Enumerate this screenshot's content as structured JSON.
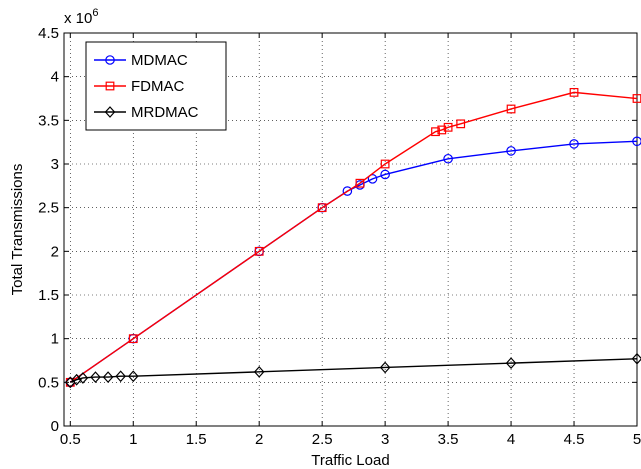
{
  "chart_data": {
    "type": "line",
    "xlabel": "Traffic Load",
    "ylabel": "Total Transmissions",
    "y_multiplier_label": "x 10",
    "y_multiplier_exponent": "6",
    "xlim": [
      0.45,
      5
    ],
    "ylim": [
      0,
      4.5
    ],
    "x_ticks": [
      0.5,
      1,
      1.5,
      2,
      2.5,
      3,
      3.5,
      4,
      4.5,
      5
    ],
    "x_tick_labels": [
      "0.5",
      "1",
      "1.5",
      "2",
      "2.5",
      "3",
      "3.5",
      "4",
      "4.5",
      "5"
    ],
    "y_ticks": [
      0,
      0.5,
      1,
      1.5,
      2,
      2.5,
      3,
      3.5,
      4,
      4.5
    ],
    "y_tick_labels": [
      "0",
      "0.5",
      "1",
      "1.5",
      "2",
      "2.5",
      "3",
      "3.5",
      "4",
      "4.5"
    ],
    "grid": true,
    "legend_position": "top-left",
    "series": [
      {
        "name": "MDMAC",
        "color": "#0000ff",
        "marker": "circle",
        "points": [
          [
            0.5,
            0.5
          ],
          [
            1,
            1.0
          ],
          [
            2,
            2.0
          ],
          [
            2.5,
            2.5
          ],
          [
            2.7,
            2.69
          ],
          [
            2.8,
            2.76
          ],
          [
            2.9,
            2.83
          ],
          [
            3,
            2.88
          ],
          [
            3.5,
            3.06
          ],
          [
            4,
            3.15
          ],
          [
            4.5,
            3.23
          ],
          [
            5,
            3.26
          ]
        ]
      },
      {
        "name": "FDMAC",
        "color": "#ff0000",
        "marker": "square",
        "points": [
          [
            0.5,
            0.5
          ],
          [
            1,
            1.0
          ],
          [
            2,
            2.0
          ],
          [
            2.5,
            2.5
          ],
          [
            2.8,
            2.78
          ],
          [
            3,
            3.0
          ],
          [
            3.4,
            3.37
          ],
          [
            3.45,
            3.39
          ],
          [
            3.5,
            3.42
          ],
          [
            3.6,
            3.46
          ],
          [
            4,
            3.63
          ],
          [
            4.5,
            3.82
          ],
          [
            5,
            3.75
          ]
        ]
      },
      {
        "name": "MRDMAC",
        "color": "#000000",
        "marker": "diamond",
        "points": [
          [
            0.5,
            0.5
          ],
          [
            0.55,
            0.53
          ],
          [
            0.6,
            0.55
          ],
          [
            0.7,
            0.56
          ],
          [
            0.8,
            0.56
          ],
          [
            0.9,
            0.57
          ],
          [
            1,
            0.57
          ],
          [
            2,
            0.62
          ],
          [
            3,
            0.67
          ],
          [
            4,
            0.72
          ],
          [
            5,
            0.77
          ]
        ]
      }
    ]
  }
}
